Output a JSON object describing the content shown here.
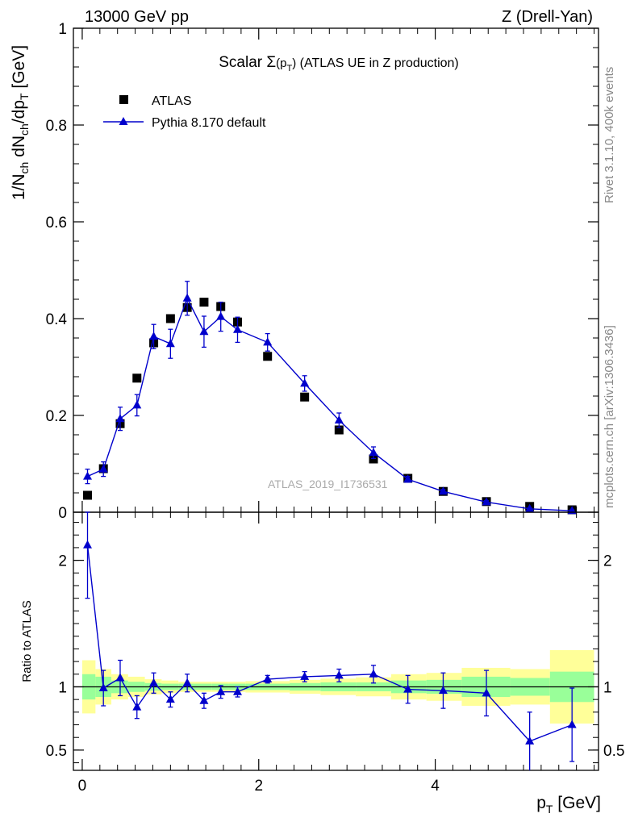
{
  "header": {
    "left_label": "13000 GeV pp",
    "right_label": "Z (Drell-Yan)"
  },
  "side_labels": {
    "rivet": "Rivet 3.1.10,  400k events",
    "mcplots": "mcplots.cern.ch [arXiv:1306.3436]"
  },
  "watermark": "ATLAS_2019_I1736531",
  "chart_data": [
    {
      "id": "main",
      "type": "scatter",
      "title": {
        "prefix": "Scalar ",
        "sigma": "Σ",
        "open": "(p",
        "sub": "T",
        "close": ")",
        "suffix": " (ATLAS UE in Z production)"
      },
      "ylabel": "1/N_ch dN_ch/dp_T [GeV]",
      "xlim": [
        -0.1,
        5.85
      ],
      "ylim": [
        0,
        1.0
      ],
      "yticks": [
        0,
        0.2,
        0.4,
        0.6,
        0.8,
        1
      ],
      "yticklabels": [
        "0",
        "0.2",
        "0.4",
        "0.6",
        "0.8",
        "1"
      ],
      "legend": {
        "position": "top-left",
        "atlas": "ATLAS",
        "pythia": "Pythia 8.170 default"
      },
      "colors": {
        "data": "#000000",
        "mc": "#0000cc"
      },
      "series": [
        {
          "name": "ATLAS",
          "x": [
            0.06,
            0.24,
            0.43,
            0.62,
            0.81,
            1.0,
            1.19,
            1.38,
            1.57,
            1.76,
            2.1,
            2.52,
            2.91,
            3.3,
            3.69,
            4.09,
            4.58,
            5.07,
            5.55
          ],
          "y": [
            0.035,
            0.09,
            0.183,
            0.277,
            0.35,
            0.4,
            0.423,
            0.434,
            0.425,
            0.393,
            0.322,
            0.238,
            0.17,
            0.11,
            0.07,
            0.043,
            0.022,
            0.012,
            0.005
          ]
        },
        {
          "name": "Pythia 8.170 default",
          "x": [
            0.06,
            0.24,
            0.43,
            0.62,
            0.81,
            1.0,
            1.19,
            1.38,
            1.57,
            1.76,
            2.1,
            2.52,
            2.91,
            3.3,
            3.69,
            4.09,
            4.58,
            5.07,
            5.55
          ],
          "y": [
            0.074,
            0.089,
            0.193,
            0.221,
            0.363,
            0.348,
            0.442,
            0.373,
            0.404,
            0.377,
            0.351,
            0.266,
            0.19,
            0.123,
            0.068,
            0.043,
            0.021,
            0.007,
            0.003
          ],
          "yerr": [
            0.015,
            0.015,
            0.024,
            0.022,
            0.025,
            0.03,
            0.035,
            0.032,
            0.03,
            0.026,
            0.018,
            0.016,
            0.015,
            0.012,
            0.006,
            0.004,
            0.003,
            0.002,
            0.002
          ]
        }
      ]
    },
    {
      "id": "ratio",
      "type": "line",
      "ylabel": "Ratio to ATLAS",
      "xlabel": "p_T [GeV]",
      "xlim": [
        -0.1,
        5.85
      ],
      "ylim": [
        0.34,
        2.38
      ],
      "yticks": [
        0.5,
        1,
        2
      ],
      "yticklabels": [
        "0.5",
        "1",
        "2"
      ],
      "xticks": [
        0,
        2,
        4
      ],
      "xticklabels": [
        "0",
        "2",
        "4"
      ],
      "colors": {
        "band_inner": "#99ff99",
        "band_outer": "#ffff99",
        "mc": "#0000cc"
      },
      "bands": {
        "edges": [
          0.0,
          0.15,
          0.33,
          0.52,
          0.71,
          0.9,
          1.09,
          1.28,
          1.47,
          1.66,
          1.85,
          2.35,
          2.7,
          3.1,
          3.5,
          3.9,
          4.3,
          4.85,
          5.3,
          5.8
        ],
        "inner_lo": [
          0.9,
          0.92,
          0.95,
          0.96,
          0.97,
          0.975,
          0.975,
          0.975,
          0.975,
          0.975,
          0.975,
          0.97,
          0.965,
          0.965,
          0.95,
          0.945,
          0.92,
          0.93,
          0.88
        ],
        "inner_hi": [
          1.1,
          1.08,
          1.05,
          1.04,
          1.03,
          1.025,
          1.025,
          1.025,
          1.025,
          1.025,
          1.025,
          1.03,
          1.035,
          1.035,
          1.05,
          1.055,
          1.08,
          1.07,
          1.12
        ],
        "outer_lo": [
          0.79,
          0.86,
          0.9,
          0.92,
          0.94,
          0.95,
          0.96,
          0.96,
          0.96,
          0.96,
          0.955,
          0.945,
          0.935,
          0.925,
          0.9,
          0.89,
          0.85,
          0.86,
          0.71
        ],
        "outer_hi": [
          1.21,
          1.14,
          1.1,
          1.08,
          1.06,
          1.05,
          1.04,
          1.04,
          1.04,
          1.04,
          1.045,
          1.055,
          1.065,
          1.075,
          1.1,
          1.11,
          1.15,
          1.14,
          1.29
        ]
      },
      "series": [
        {
          "name": "Pythia 8.170 default",
          "x": [
            0.06,
            0.24,
            0.43,
            0.62,
            0.81,
            1.0,
            1.19,
            1.38,
            1.57,
            1.76,
            2.1,
            2.52,
            2.91,
            3.3,
            3.69,
            4.09,
            4.58,
            5.07,
            5.55
          ],
          "y": [
            2.12,
            0.99,
            1.07,
            0.84,
            1.03,
            0.9,
            1.03,
            0.89,
            0.96,
            0.96,
            1.06,
            1.08,
            1.09,
            1.1,
            0.98,
            0.97,
            0.95,
            0.57,
            0.7
          ],
          "yerr": [
            0.42,
            0.14,
            0.14,
            0.09,
            0.08,
            0.06,
            0.07,
            0.06,
            0.05,
            0.04,
            0.03,
            0.04,
            0.05,
            0.07,
            0.11,
            0.14,
            0.18,
            0.23,
            0.29
          ]
        }
      ]
    }
  ]
}
